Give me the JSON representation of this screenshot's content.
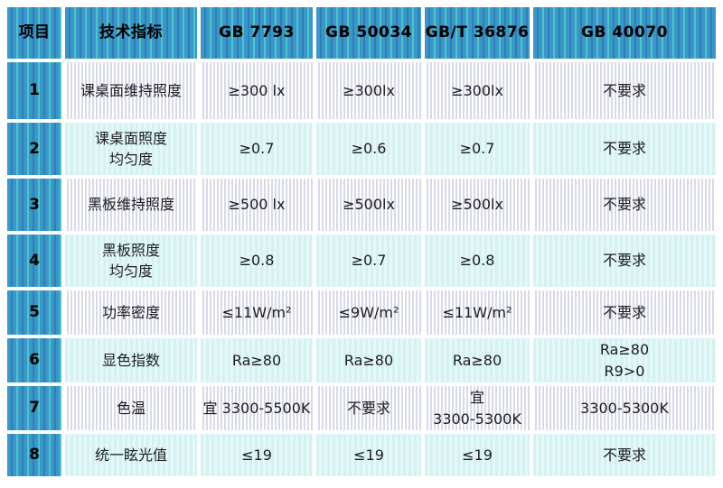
{
  "colors": {
    "header_blue": "#3b97c9",
    "header_stripe_dark": "#2d7fb4",
    "header_stripe_teal": "#4cc6c9",
    "odd_row_stripe": "#d8dae9",
    "even_row_bg": "#d5f1f2",
    "text": "#1d1d1d"
  },
  "table": {
    "headers": [
      "项目",
      "技术指标",
      "GB 7793",
      "GB 50034",
      "GB/T 36876",
      "GB 40070"
    ],
    "rows": [
      {
        "cells": [
          "1",
          "课桌面维持照度",
          "≥300 lx",
          "≥300lx",
          "≥300lx",
          "不要求"
        ]
      },
      {
        "cells": [
          "2",
          "课桌面照度\n均匀度",
          "≥0.7",
          "≥0.6",
          "≥0.7",
          "不要求"
        ]
      },
      {
        "cells": [
          "3",
          "黑板维持照度",
          "≥500 lx",
          "≥500lx",
          "≥500lx",
          "不要求"
        ]
      },
      {
        "cells": [
          "4",
          "黑板照度\n均匀度",
          "≥0.8",
          "≥0.7",
          "≥0.8",
          "不要求"
        ]
      },
      {
        "cells": [
          "5",
          "功率密度",
          "≤11W/m²",
          "≤9W/m²",
          "≤11W/m²",
          "不要求"
        ]
      },
      {
        "cells": [
          "6",
          "显色指数",
          "Ra≥80",
          "Ra≥80",
          "Ra≥80",
          "Ra≥80\nR9>0"
        ]
      },
      {
        "cells": [
          "7",
          "色温",
          "宜 3300-5500K",
          "不要求",
          "宜\n3300-5300K",
          "3300-5300K"
        ]
      },
      {
        "cells": [
          "8",
          "统一眩光值",
          "≤19",
          "≤19",
          "≤19",
          "不要求"
        ]
      }
    ]
  }
}
